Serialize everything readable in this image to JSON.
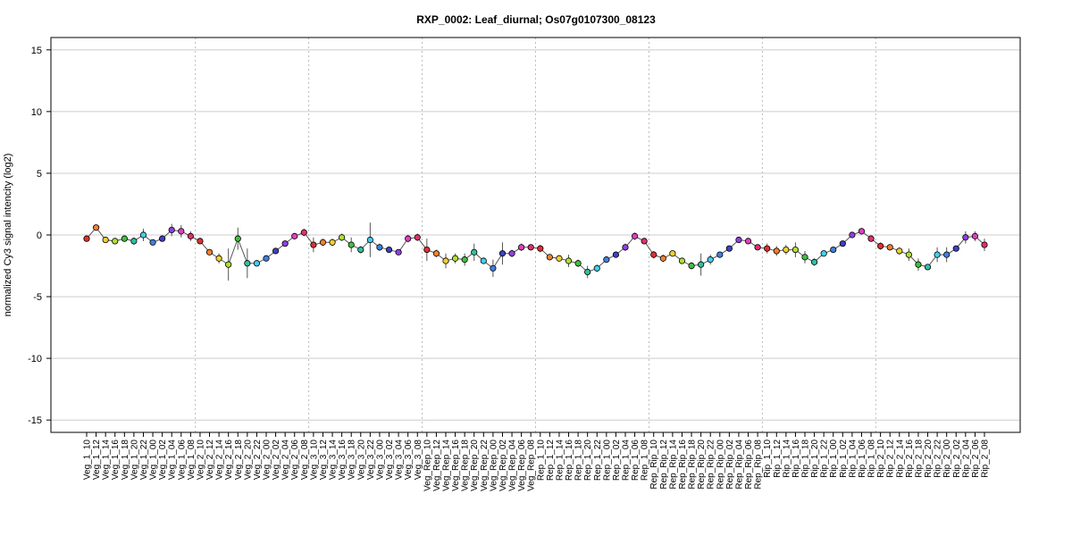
{
  "chart_data": {
    "type": "line",
    "title": "RXP_0002: Leaf_diurnal; Os07g0107300_08123",
    "ylabel": "normalized Cy3 signal intencity (log2)",
    "xlabel": "",
    "ylim": [
      -16,
      16
    ],
    "yticks": [
      -15,
      -10,
      -5,
      0,
      5,
      10,
      15
    ],
    "grid": true,
    "legend": "none",
    "line_color": "#555555",
    "errorbar_color": "#555555",
    "point_edge_color": "#000000",
    "palette": [
      "#e03030",
      "#f08030",
      "#f0d030",
      "#b0e030",
      "#40c040",
      "#30c0a0",
      "#40d0f0",
      "#4080e0",
      "#4040c0",
      "#9040e0",
      "#e040c0",
      "#e03070"
    ],
    "group_boundaries_after": [
      "Veg_1_08",
      "Veg_2_08",
      "Veg_3_08",
      "Veg_Rep_08",
      "Rep_1_08",
      "Rep_Rip_08",
      "Rip_1_08"
    ],
    "categories": [
      "Veg_1_10",
      "Veg_1_12",
      "Veg_1_14",
      "Veg_1_16",
      "Veg_1_18",
      "Veg_1_20",
      "Veg_1_22",
      "Veg_1_00",
      "Veg_1_02",
      "Veg_1_04",
      "Veg_1_06",
      "Veg_1_08",
      "Veg_2_10",
      "Veg_2_12",
      "Veg_2_14",
      "Veg_2_16",
      "Veg_2_18",
      "Veg_2_20",
      "Veg_2_22",
      "Veg_2_00",
      "Veg_2_02",
      "Veg_2_04",
      "Veg_2_06",
      "Veg_2_08",
      "Veg_3_10",
      "Veg_3_12",
      "Veg_3_14",
      "Veg_3_16",
      "Veg_3_18",
      "Veg_3_20",
      "Veg_3_22",
      "Veg_3_00",
      "Veg_3_02",
      "Veg_3_04",
      "Veg_3_06",
      "Veg_3_08",
      "Veg_Rep_10",
      "Veg_Rep_12",
      "Veg_Rep_14",
      "Veg_Rep_16",
      "Veg_Rep_18",
      "Veg_Rep_20",
      "Veg_Rep_22",
      "Veg_Rep_00",
      "Veg_Rep_02",
      "Veg_Rep_04",
      "Veg_Rep_06",
      "Veg_Rep_08",
      "Rep_1_10",
      "Rep_1_12",
      "Rep_1_14",
      "Rep_1_16",
      "Rep_1_18",
      "Rep_1_20",
      "Rep_1_22",
      "Rep_1_00",
      "Rep_1_02",
      "Rep_1_04",
      "Rep_1_06",
      "Rep_1_08",
      "Rep_Rip_10",
      "Rep_Rip_12",
      "Rep_Rip_14",
      "Rep_Rip_16",
      "Rep_Rip_18",
      "Rep_Rip_20",
      "Rep_Rip_22",
      "Rep_Rip_00",
      "Rep_Rip_02",
      "Rep_Rip_04",
      "Rep_Rip_06",
      "Rep_Rip_08",
      "Rip_1_10",
      "Rip_1_12",
      "Rip_1_14",
      "Rip_1_16",
      "Rip_1_18",
      "Rip_1_20",
      "Rip_1_22",
      "Rip_1_00",
      "Rip_1_02",
      "Rip_1_04",
      "Rip_1_06",
      "Rip_1_08",
      "Rip_2_10",
      "Rip_2_12",
      "Rip_2_14",
      "Rip_2_16",
      "Rip_2_18",
      "Rip_2_20",
      "Rip_2_22",
      "Rip_2_00",
      "Rip_2_02",
      "Rip_2_04",
      "Rip_2_06",
      "Rip_2_08"
    ],
    "series": [
      {
        "values": [
          -0.3,
          0.6,
          -0.4,
          -0.5,
          -0.3,
          -0.5,
          0.0,
          -0.6,
          -0.3,
          0.4,
          0.3,
          -0.1,
          -0.5,
          -1.4,
          -1.9,
          -2.4,
          -0.3,
          -2.3,
          -2.3,
          -1.9,
          -1.3,
          -0.7,
          -0.1,
          0.2,
          -0.8,
          -0.6,
          -0.6,
          -0.2,
          -0.8,
          -1.2,
          -0.4,
          -1.0,
          -1.2,
          -1.4,
          -0.3,
          -0.2,
          -1.2,
          -1.5,
          -2.1,
          -1.9,
          -2.0,
          -1.4,
          -2.1,
          -2.7,
          -1.5,
          -1.5,
          -1.0,
          -1.0,
          -1.1,
          -1.8,
          -1.9,
          -2.1,
          -2.3,
          -3.0,
          -2.7,
          -2.0,
          -1.6,
          -1.0,
          -0.1,
          -0.5,
          -1.6,
          -1.9,
          -1.5,
          -2.1,
          -2.5,
          -2.4,
          -2.0,
          -1.6,
          -1.1,
          -0.4,
          -0.5,
          -1.0,
          -1.1,
          -1.3,
          -1.2,
          -1.2,
          -1.8,
          -2.2,
          -1.5,
          -1.2,
          -0.7,
          0.0,
          0.3,
          -0.3,
          -0.9,
          -1.0,
          -1.3,
          -1.6,
          -2.4,
          -2.6,
          -1.6,
          -1.6,
          -1.1,
          -0.2,
          -0.1,
          -0.8
        ],
        "errors": [
          0.2,
          0.2,
          0.2,
          0.2,
          0.2,
          0.3,
          0.5,
          0.2,
          0.2,
          0.5,
          0.5,
          0.4,
          0.2,
          0.2,
          0.4,
          1.3,
          0.9,
          1.2,
          0.2,
          0.2,
          0.2,
          0.2,
          0.2,
          0.3,
          0.6,
          0.3,
          0.3,
          0.3,
          0.6,
          0.3,
          1.4,
          0.3,
          0.2,
          0.2,
          0.3,
          0.3,
          0.9,
          0.3,
          0.6,
          0.4,
          0.5,
          0.7,
          0.2,
          0.7,
          0.9,
          0.3,
          0.3,
          0.2,
          0.3,
          0.2,
          0.2,
          0.5,
          0.3,
          0.5,
          0.3,
          0.2,
          0.2,
          0.3,
          0.3,
          0.2,
          0.3,
          0.3,
          0.2,
          0.2,
          0.3,
          0.9,
          0.4,
          0.2,
          0.2,
          0.2,
          0.2,
          0.2,
          0.4,
          0.4,
          0.4,
          0.6,
          0.5,
          0.3,
          0.2,
          0.2,
          0.2,
          0.2,
          0.2,
          0.2,
          0.3,
          0.2,
          0.3,
          0.5,
          0.5,
          0.2,
          0.6,
          0.6,
          0.2,
          0.5,
          0.4,
          0.5
        ]
      }
    ]
  }
}
